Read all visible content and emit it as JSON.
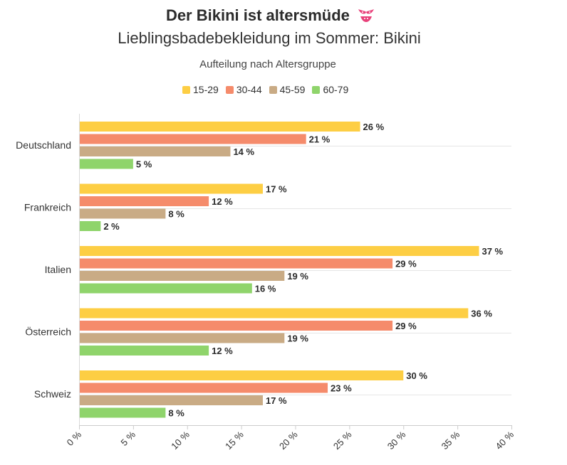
{
  "chart_data": {
    "type": "bar",
    "orientation": "horizontal",
    "title": "Der Bikini ist altersmüde",
    "subtitle": "Lieblingsbadebekleidung im Sommer: Bikini",
    "description": "Aufteilung nach Altersgruppe",
    "title_icon": "bikini-icon",
    "categories": [
      "Deutschland",
      "Frankreich",
      "Italien",
      "Österreich",
      "Schweiz"
    ],
    "series": [
      {
        "name": "15-29",
        "color": "#fdce44",
        "values": [
          26,
          17,
          37,
          36,
          30
        ]
      },
      {
        "name": "30-44",
        "color": "#f58b6b",
        "values": [
          21,
          12,
          29,
          29,
          23
        ]
      },
      {
        "name": "45-59",
        "color": "#c9ab85",
        "values": [
          14,
          8,
          19,
          19,
          17
        ]
      },
      {
        "name": "60-79",
        "color": "#8fd46b",
        "values": [
          5,
          2,
          16,
          12,
          8
        ]
      }
    ],
    "value_suffix": " %",
    "xlim": [
      0,
      40
    ],
    "xticks": [
      0,
      5,
      10,
      15,
      20,
      25,
      30,
      35,
      40
    ],
    "xtick_labels": [
      "0 %",
      "5 %",
      "10 %",
      "15 %",
      "20 %",
      "25 %",
      "30 %",
      "35 %",
      "40 %"
    ],
    "grid": true,
    "legend_position": "top"
  }
}
